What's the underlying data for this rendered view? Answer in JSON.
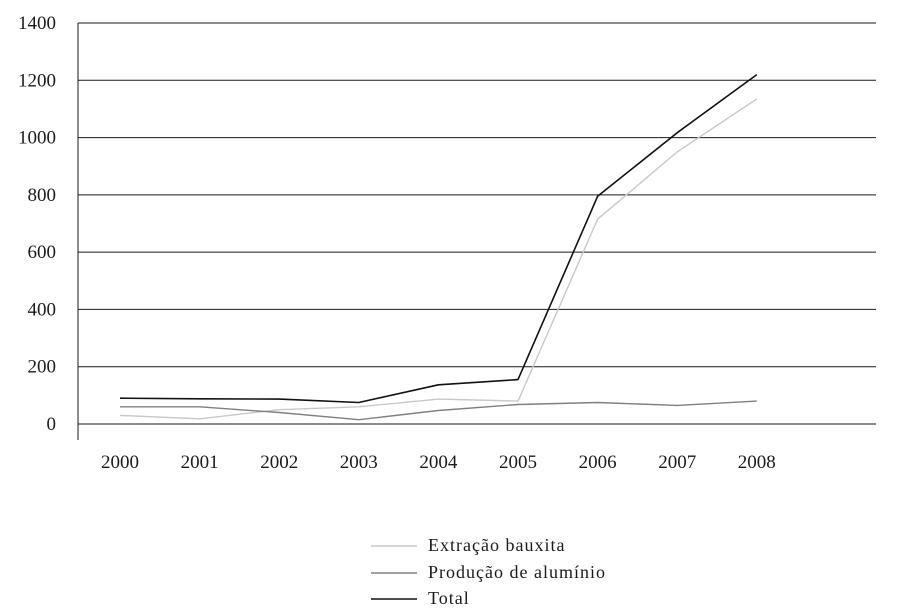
{
  "chart_data": {
    "type": "line",
    "title": "",
    "xlabel": "",
    "ylabel": "",
    "x": [
      "2000",
      "2001",
      "2002",
      "2003",
      "2004",
      "2005",
      "2006",
      "2007",
      "2008"
    ],
    "ylim": [
      0,
      1400
    ],
    "yticks": [
      0,
      200,
      400,
      600,
      800,
      1000,
      1200,
      1400
    ],
    "grid": "horizontal",
    "legend_position": "bottom-center",
    "series": [
      {
        "name": "Extração bauxita",
        "color": "#c8c8c8",
        "values": [
          30,
          18,
          50,
          60,
          87,
          80,
          715,
          950,
          1135
        ]
      },
      {
        "name": "Produção de alumínio",
        "color": "#808080",
        "values": [
          60,
          60,
          40,
          15,
          47,
          68,
          75,
          65,
          80
        ]
      },
      {
        "name": "Total",
        "color": "#111111",
        "values": [
          90,
          88,
          87,
          75,
          137,
          155,
          795,
          1017,
          1220
        ]
      }
    ]
  }
}
